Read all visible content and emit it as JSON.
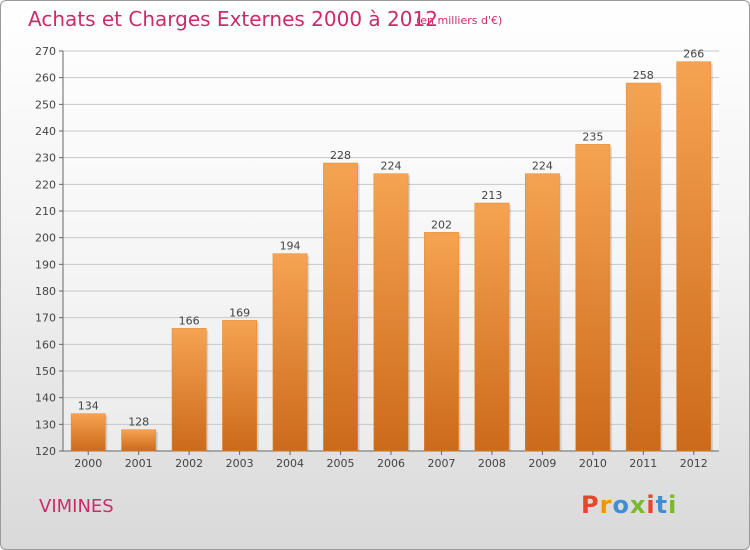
{
  "header": {
    "title": "Achats et Charges Externes 2000 à 2012",
    "subtitle": "(en milliers d'€)"
  },
  "footer": {
    "commune": "VIMINES",
    "logo_text": "Proxiti"
  },
  "colors": {
    "accent": "#cc2b6b",
    "bar_top": "#f5a352",
    "bar_bottom": "#cc6a1a",
    "logo": [
      "#e8462a",
      "#f29400",
      "#3f8fd2",
      "#7cb82f",
      "#e8462a",
      "#3f8fd2",
      "#7cb82f"
    ]
  },
  "chart_data": {
    "type": "bar",
    "categories": [
      "2000",
      "2001",
      "2002",
      "2003",
      "2004",
      "2005",
      "2006",
      "2007",
      "2008",
      "2009",
      "2010",
      "2011",
      "2012"
    ],
    "values": [
      134,
      128,
      166,
      169,
      194,
      228,
      224,
      202,
      213,
      224,
      235,
      258,
      266
    ],
    "title": "Achats et Charges Externes 2000 à 2012",
    "ylim": [
      120,
      270
    ],
    "yticks": [
      120,
      130,
      140,
      150,
      160,
      170,
      180,
      190,
      200,
      210,
      220,
      230,
      240,
      250,
      260,
      270
    ],
    "grid": true,
    "data_labels": true
  }
}
